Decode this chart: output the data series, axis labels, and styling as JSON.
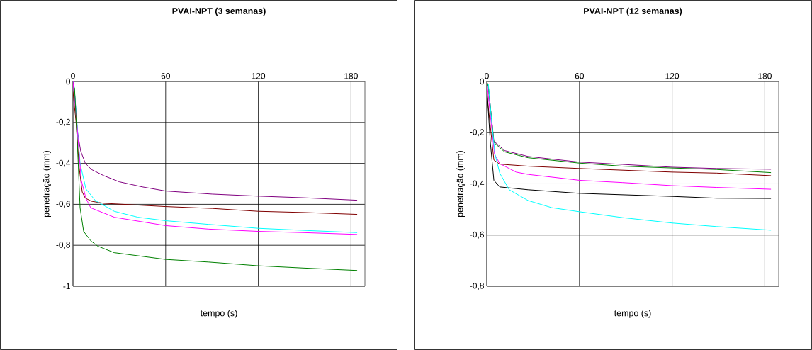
{
  "chart_data": [
    {
      "type": "line",
      "title": "PVAI-NPT (3 semanas)",
      "xlabel": "tempo (s)",
      "ylabel": "penetração (mm)",
      "xlim": [
        0,
        189
      ],
      "ylim": [
        -1,
        0
      ],
      "xticks": [
        0,
        60,
        120,
        180
      ],
      "yticks": [
        {
          "value": -1,
          "label": "-1"
        },
        {
          "value": -0.8,
          "label": "-0,8"
        },
        {
          "value": -0.6,
          "label": "-0,6"
        },
        {
          "value": -0.4,
          "label": "-0,4"
        },
        {
          "value": -0.2,
          "label": "-0,2"
        },
        {
          "value": 0,
          "label": "0"
        }
      ],
      "grid": true,
      "series": [
        {
          "color": "#800080",
          "x": [
            0,
            1,
            3,
            5,
            8,
            12,
            20,
            30,
            45,
            60,
            90,
            120,
            150,
            184
          ],
          "values": [
            0,
            -0.05,
            -0.25,
            -0.34,
            -0.4,
            -0.43,
            -0.46,
            -0.49,
            -0.515,
            -0.535,
            -0.55,
            -0.56,
            -0.568,
            -0.58
          ]
        },
        {
          "color": "#800000",
          "x": [
            0,
            2,
            4,
            6,
            8,
            12,
            20,
            40,
            60,
            90,
            120,
            150,
            184
          ],
          "values": [
            -0.05,
            -0.2,
            -0.42,
            -0.54,
            -0.57,
            -0.585,
            -0.595,
            -0.603,
            -0.611,
            -0.62,
            -0.634,
            -0.64,
            -0.649
          ]
        },
        {
          "color": "#00ffff",
          "x": [
            0.5,
            4.6,
            8.4,
            14.5,
            26.7,
            42,
            60,
            88,
            120,
            149,
            184
          ],
          "values": [
            0,
            -0.4,
            -0.525,
            -0.582,
            -0.634,
            -0.663,
            -0.68,
            -0.698,
            -0.717,
            -0.727,
            -0.738
          ]
        },
        {
          "color": "#ff00ff",
          "x": [
            0,
            3,
            5.3,
            8.4,
            11.5,
            26.7,
            60,
            88,
            120,
            149,
            184
          ],
          "values": [
            0,
            -0.25,
            -0.48,
            -0.571,
            -0.617,
            -0.663,
            -0.704,
            -0.721,
            -0.732,
            -0.738,
            -0.747
          ]
        },
        {
          "color": "#008000",
          "x": [
            1,
            3,
            4.6,
            6.9,
            11.5,
            16,
            26.7,
            60,
            88,
            120,
            149,
            184
          ],
          "values": [
            -0.03,
            -0.33,
            -0.617,
            -0.732,
            -0.778,
            -0.804,
            -0.836,
            -0.869,
            -0.882,
            -0.9,
            -0.911,
            -0.923
          ]
        }
      ]
    },
    {
      "type": "line",
      "title": "PVAI-NPT (12 semanas)",
      "xlabel": "tempo (s)",
      "ylabel": "penetração (mm)",
      "xlim": [
        0,
        189
      ],
      "ylim": [
        -0.8,
        0
      ],
      "xticks": [
        0,
        60,
        120,
        180
      ],
      "yticks": [
        {
          "value": -0.8,
          "label": "-0,8"
        },
        {
          "value": -0.6,
          "label": "-0,6"
        },
        {
          "value": -0.4,
          "label": "-0,4"
        },
        {
          "value": -0.2,
          "label": "-0,2"
        },
        {
          "value": 0,
          "label": "0"
        }
      ],
      "grid": true,
      "series": [
        {
          "color": "#800080",
          "x": [
            0,
            1,
            4.6,
            11.5,
            26.7,
            60,
            88,
            120,
            149,
            184
          ],
          "values": [
            0,
            -0.02,
            -0.233,
            -0.27,
            -0.293,
            -0.315,
            -0.324,
            -0.335,
            -0.34,
            -0.343
          ]
        },
        {
          "color": "#008000",
          "x": [
            0,
            1,
            4.6,
            11.5,
            26.7,
            60,
            88,
            120,
            149,
            184
          ],
          "values": [
            0,
            -0.02,
            -0.238,
            -0.275,
            -0.298,
            -0.319,
            -0.331,
            -0.338,
            -0.344,
            -0.356
          ]
        },
        {
          "color": "#800000",
          "x": [
            0,
            4.6,
            8.4,
            26.7,
            60,
            120,
            149,
            184
          ],
          "values": [
            -0.044,
            -0.307,
            -0.323,
            -0.331,
            -0.34,
            -0.354,
            -0.358,
            -0.368
          ]
        },
        {
          "color": "#ff00ff",
          "x": [
            0,
            5,
            8.4,
            19,
            26.7,
            60,
            88,
            120,
            149,
            184
          ],
          "values": [
            0,
            -0.284,
            -0.321,
            -0.354,
            -0.363,
            -0.386,
            -0.395,
            -0.407,
            -0.414,
            -0.421
          ]
        },
        {
          "color": "#000000",
          "x": [
            0,
            2.3,
            4.6,
            8.4,
            26.7,
            60,
            120,
            149,
            184
          ],
          "values": [
            -0.02,
            -0.238,
            -0.386,
            -0.412,
            -0.423,
            -0.437,
            -0.449,
            -0.456,
            -0.457
          ]
        },
        {
          "color": "#00ffff",
          "x": [
            1,
            3,
            5.3,
            8.4,
            14.5,
            26.7,
            42,
            60,
            88,
            120,
            149,
            184
          ],
          "values": [
            -0.01,
            -0.145,
            -0.284,
            -0.358,
            -0.423,
            -0.465,
            -0.493,
            -0.509,
            -0.532,
            -0.553,
            -0.567,
            -0.581
          ]
        }
      ]
    }
  ]
}
